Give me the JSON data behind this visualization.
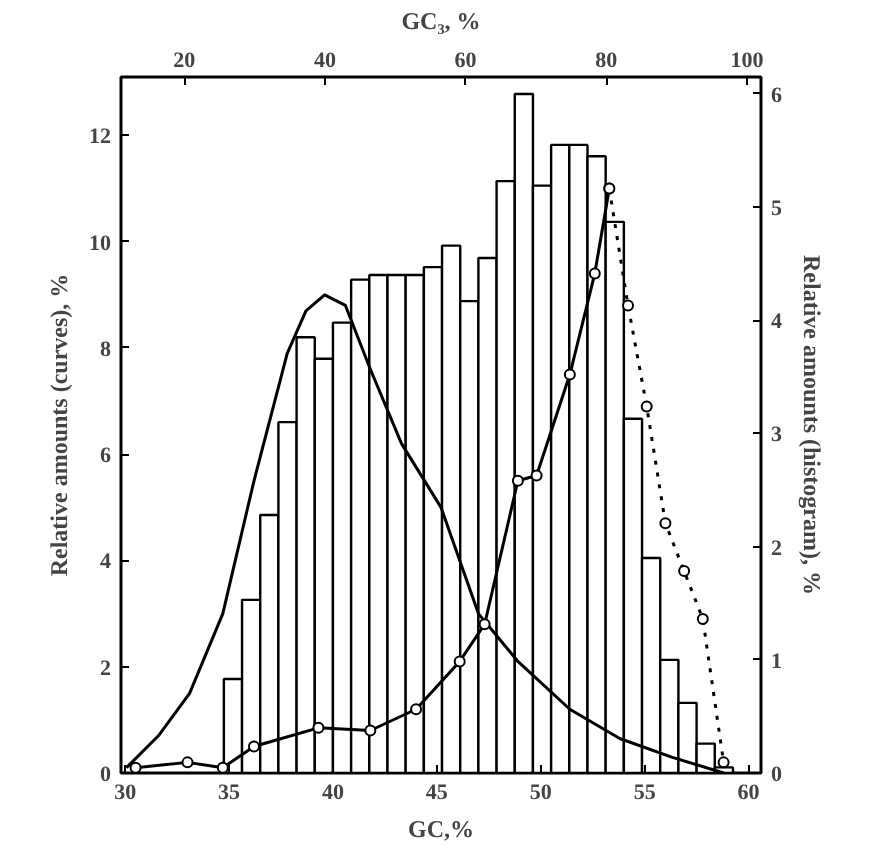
{
  "chart_data": {
    "type": "line",
    "xlabel": "GC,%",
    "x2label": "GC₃, %",
    "ylabel": "Relative amounts (curves), %",
    "y2label": "Relative amounts (histogram), %",
    "xlim": [
      29.8,
      60.6
    ],
    "xticks": [
      30,
      35,
      40,
      45,
      50,
      55,
      60
    ],
    "x2lim": [
      11,
      102
    ],
    "x2ticks": [
      20,
      40,
      60,
      80,
      100
    ],
    "ylim": [
      0,
      13.1
    ],
    "yticks": [
      0,
      2,
      4,
      6,
      8,
      10,
      12
    ],
    "y2lim": [
      0,
      6.15
    ],
    "y2ticks": [
      0,
      1,
      2,
      3,
      4,
      5,
      6
    ],
    "grid": false,
    "series": [
      {
        "type": "histogram",
        "axis": "y2",
        "color": "#ffffff",
        "bins": [
          34.75,
          35.625,
          36.5,
          37.375,
          38.25,
          39.125,
          40,
          40.875,
          41.75,
          42.625,
          43.5,
          44.375,
          45.25,
          46.125,
          47,
          47.875,
          48.75,
          49.625,
          50.5,
          51.375,
          52.25,
          53.125,
          54,
          54.875,
          55.75,
          56.625,
          57.5,
          58.375,
          59.25
        ],
        "values": [
          0.83,
          1.53,
          2.28,
          3.1,
          3.85,
          3.66,
          3.98,
          4.36,
          4.4,
          4.4,
          4.4,
          4.47,
          4.66,
          4.17,
          4.55,
          5.23,
          6.0,
          5.19,
          5.55,
          5.55,
          5.45,
          4.87,
          3.13,
          1.9,
          1.0,
          0.62,
          0.26,
          0.05
        ]
      },
      {
        "color": "#000000",
        "marker": "none",
        "line_style": "solid",
        "x": [
          30.06,
          31.6,
          33.1,
          34.7,
          36.2,
          37.8,
          38.7,
          39.6,
          40.6,
          41.8,
          43.3,
          45.2,
          47.0,
          48.9,
          51.4,
          53.8,
          56.3,
          58.8
        ],
        "values": [
          0.1,
          0.7,
          1.5,
          3.0,
          5.5,
          7.9,
          8.7,
          9.0,
          8.8,
          7.6,
          6.2,
          5.0,
          3.0,
          2.1,
          1.2,
          0.65,
          0.3,
          0
        ]
      },
      {
        "color": "#000000",
        "marker": "circle",
        "line_style": "solid",
        "x": [
          30.5,
          33.0,
          34.7,
          36.2,
          39.3,
          41.8,
          44.0,
          46.1,
          47.3,
          48.9,
          49.8,
          51.4,
          52.6,
          53.3
        ],
        "values": [
          0.1,
          0.2,
          0.1,
          0.5,
          0.85,
          0.8,
          1.2,
          2.1,
          2.8,
          5.5,
          5.6,
          7.5,
          9.4,
          11.0
        ]
      },
      {
        "color": "#000000",
        "marker": "circle",
        "line_style": "dotted",
        "x": [
          53.3,
          54.2,
          55.1,
          56.0,
          56.9,
          57.8,
          58.8
        ],
        "values": [
          11.0,
          8.8,
          6.9,
          4.7,
          3.8,
          2.9,
          0.2
        ]
      }
    ]
  }
}
